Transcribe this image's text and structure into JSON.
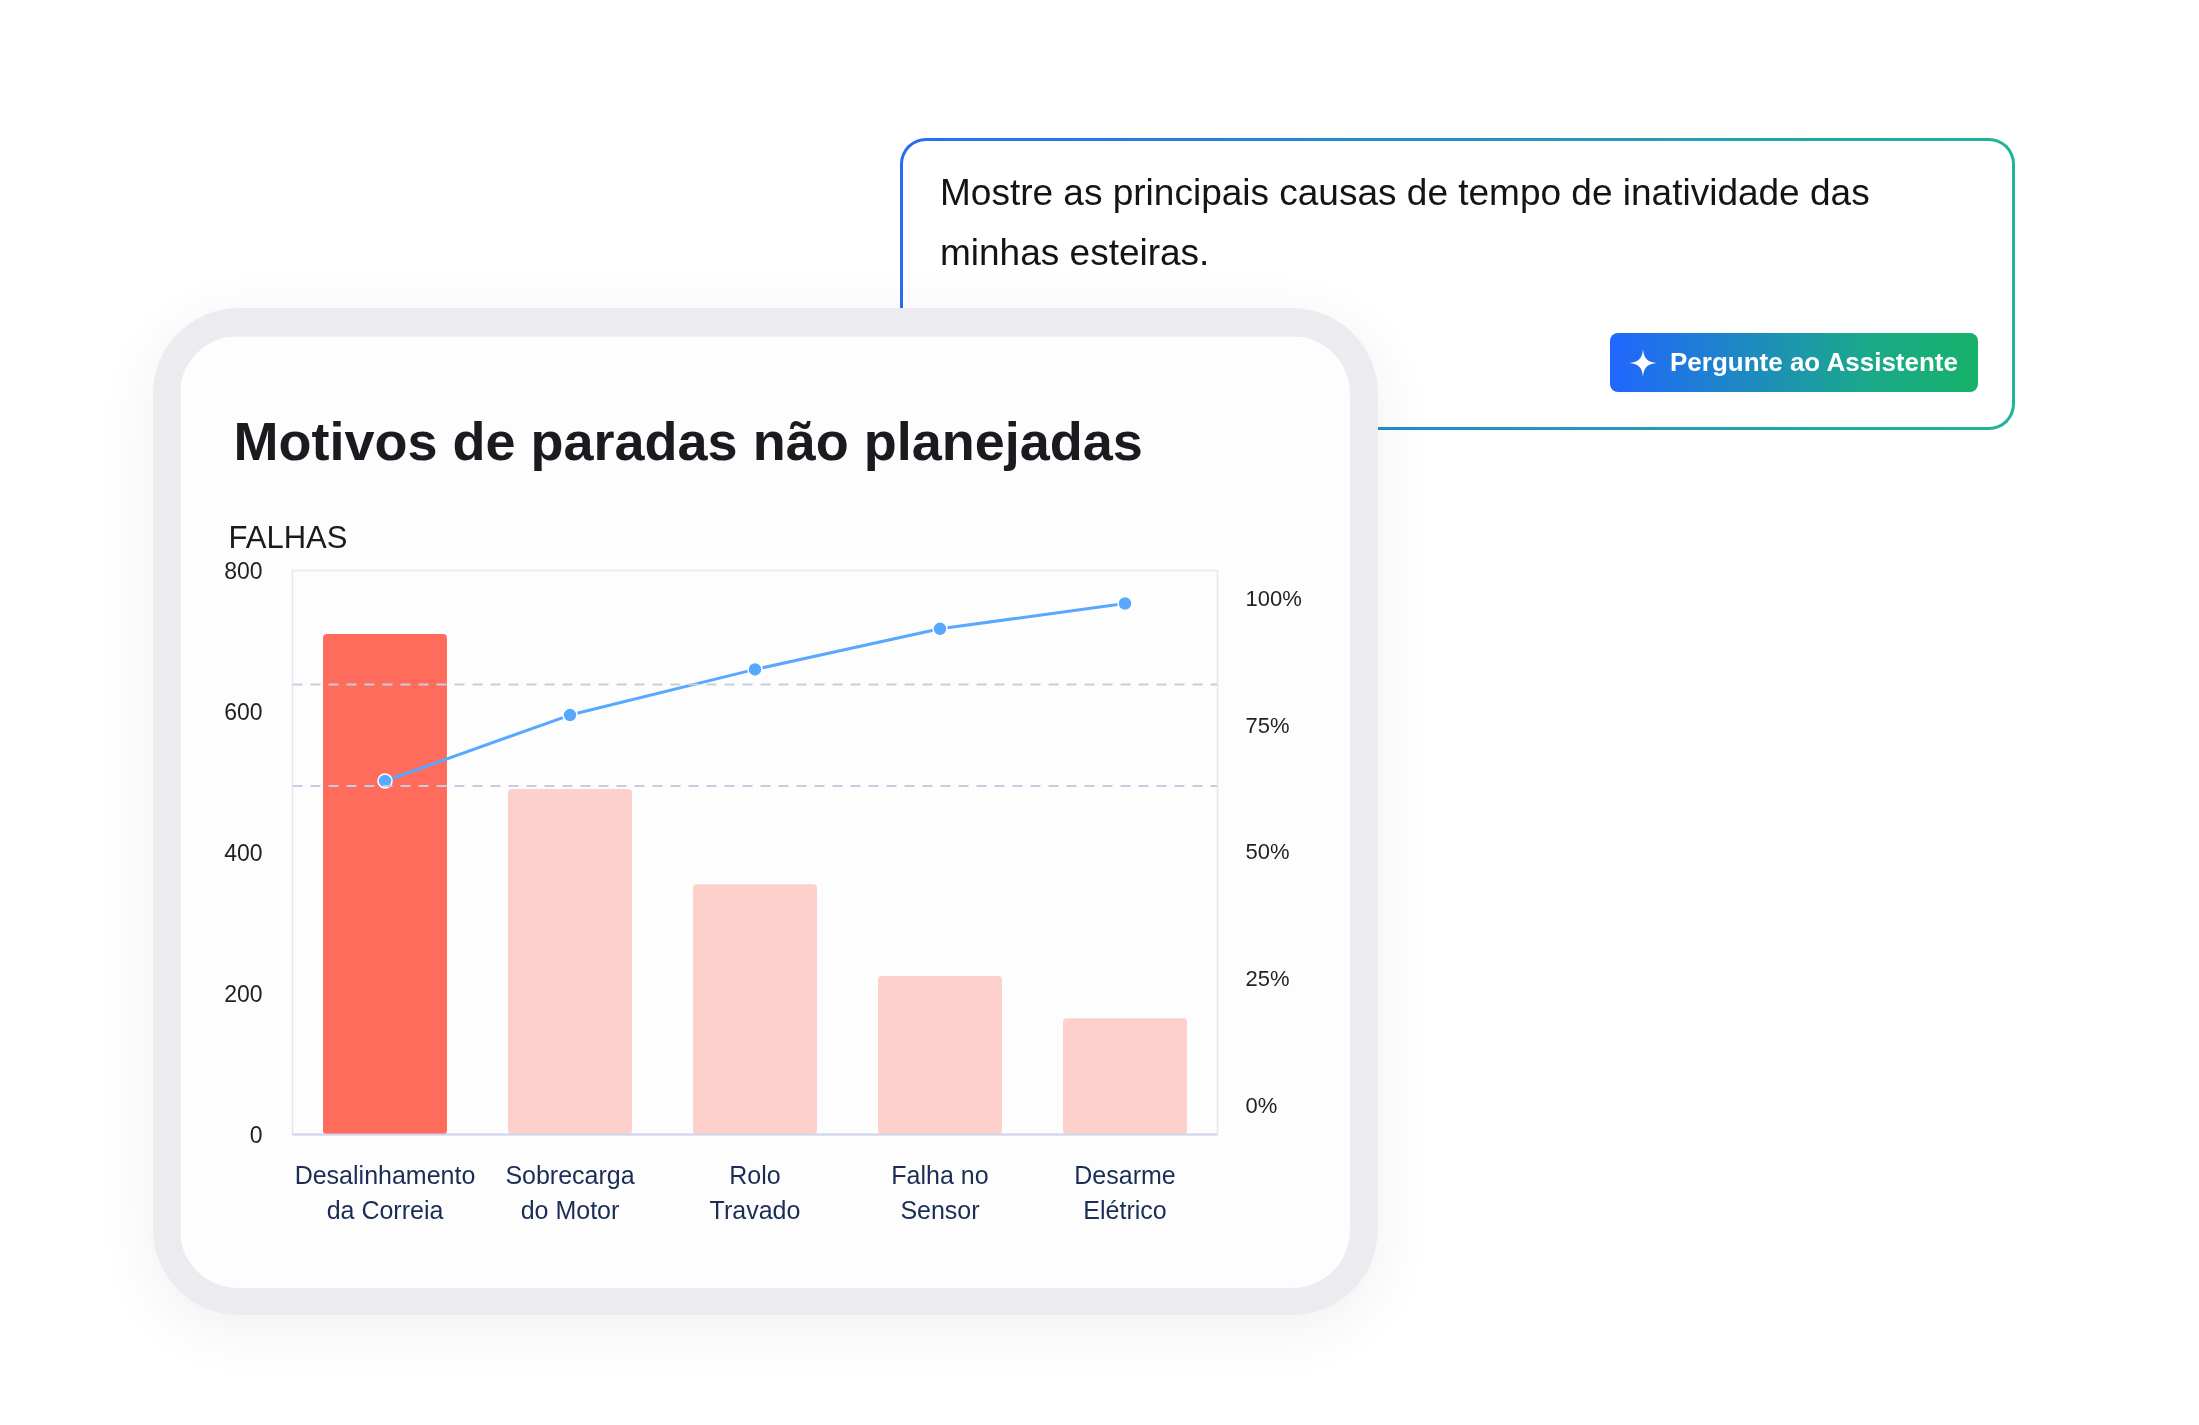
{
  "chart_data": {
    "type": "bar",
    "title": "Motivos de paradas não planejadas",
    "ylabel": "FALHAS",
    "categories": [
      "Desalinhamento da Correia",
      "Sobrecarga do Motor",
      "Rolo Travado",
      "Falha no Sensor",
      "Desarme Elétrico"
    ],
    "series": [
      {
        "colors": [
          "#ff6c5c",
          "#fdd0cb",
          "#fdd0cb",
          "#fdd0cb",
          "#fdd0cb"
        ],
        "values": [
          710,
          490,
          355,
          225,
          165
        ]
      },
      {
        "type": "line",
        "axis": "y2",
        "color": "#58a8ff",
        "values": [
          64,
          77,
          86,
          94,
          99
        ]
      }
    ],
    "ylim": [
      0,
      800
    ],
    "yticks": [
      0,
      200,
      400,
      600,
      800
    ],
    "y2lim": [
      -5.7,
      105.5
    ],
    "y2ticks": [
      {
        "value": 0,
        "label": "0%"
      },
      {
        "value": 25,
        "label": "25%"
      },
      {
        "value": 50,
        "label": "50%"
      },
      {
        "value": 75,
        "label": "75%"
      },
      {
        "value": 100,
        "label": "100%"
      }
    ],
    "ref_lines": [
      {
        "axis": "y2",
        "value": 83,
        "color": "#c9cce0",
        "line_style": "dashed"
      },
      {
        "axis": "y2",
        "value": 63,
        "color": "#c9cce0",
        "line_style": "dashed"
      }
    ],
    "marker": "circle",
    "annotations": [
      "Mostre as principais causas de tempo de inatividade das minhas esteiras.",
      "Pergunte ao Assistente"
    ]
  }
}
